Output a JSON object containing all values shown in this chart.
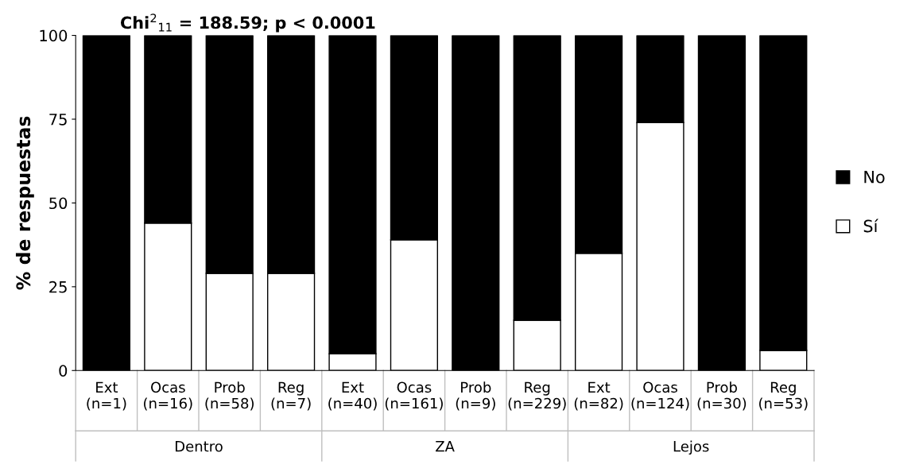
{
  "chart_data": {
    "type": "bar",
    "stacked": true,
    "title": "Chi$^{2}$$_{11}$ = 188.59; p < 0.0001",
    "ylabel": "% de respuestas",
    "categories": [
      "Ext\n(n=1)",
      "Ocas\n(n=16)",
      "Prob\n(n=58)",
      "Reg\n(n=7)",
      "Ext\n(n=40)",
      "Ocas\n(n=161)",
      "Prob\n(n=9)",
      "Reg\n(n=229)",
      "Ext\n(n=82)",
      "Ocas\n(n=124)",
      "Prob\n(n=30)",
      "Reg\n(n=53)"
    ],
    "series": [
      {
        "name": "Sí",
        "color": "#ffffff",
        "values": [
          0,
          44,
          29,
          29,
          5,
          39,
          0,
          15,
          35,
          74,
          0,
          6
        ]
      },
      {
        "name": "No",
        "color": "#000000",
        "values": [
          100,
          56,
          71,
          71,
          95,
          61,
          100,
          85,
          65,
          26,
          100,
          94
        ]
      }
    ],
    "annotations": [
      "Dentro",
      "ZA",
      "Lejos"
    ],
    "ylim": [
      0,
      100
    ],
    "yticks": [
      0,
      25,
      50,
      75,
      100
    ],
    "grid": false,
    "legend": "right"
  }
}
